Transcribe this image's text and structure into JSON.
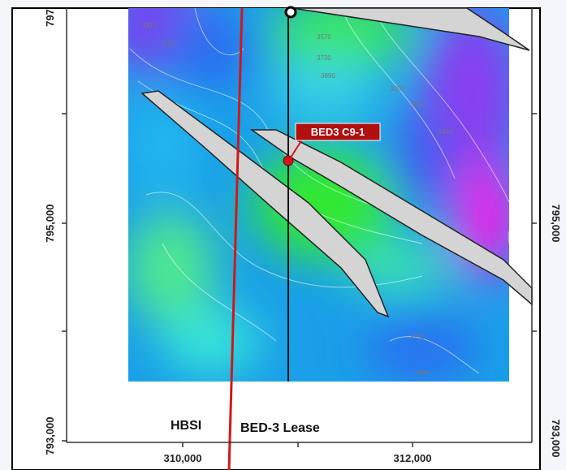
{
  "map": {
    "left_axis": [
      "797",
      "795,000",
      "793,000"
    ],
    "right_axis": [
      "795,000",
      "793,000"
    ],
    "bottom_axis": [
      "310,000",
      "312,000"
    ],
    "well_label": "BED3 C9-1",
    "zone_labels": [
      "HBSI",
      "BED-3 Lease"
    ],
    "contour_labels": [
      "3410",
      "3410",
      "3570",
      "3730",
      "3890",
      "3250",
      "3570",
      "3410",
      "3730",
      "3890"
    ]
  }
}
